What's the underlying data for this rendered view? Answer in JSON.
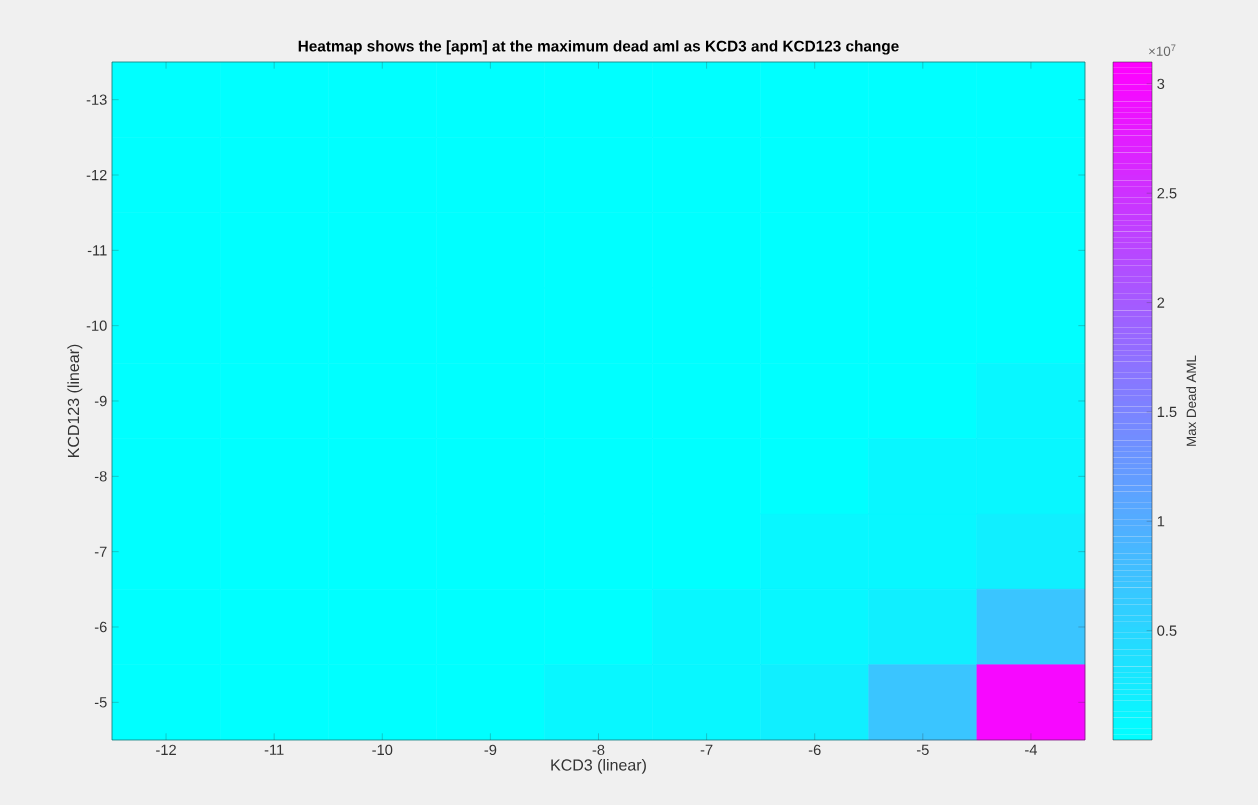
{
  "chart_data": {
    "type": "heatmap",
    "title": "Heatmap shows the [apm] at the maximum dead aml as KCD3 and KCD123 change",
    "xlabel": "KCD3 (linear)",
    "ylabel": "KCD123 (linear)",
    "clabel": "Max Dead AML",
    "annotations": [
      "×10$^{7}$"
    ],
    "categories": [
      "-12",
      "-11",
      "-10",
      "-9",
      "-8",
      "-7",
      "-6",
      "-5",
      "-4"
    ],
    "y_categories": [
      "-13",
      "-12",
      "-11",
      "-10",
      "-9",
      "-8",
      "-7",
      "-6",
      "-5"
    ],
    "clim": [
      0,
      3.1
    ],
    "cticks": [
      0.5,
      1,
      1.5,
      2,
      2.5,
      3
    ],
    "cells": [
      [
        0,
        0,
        0,
        0,
        0,
        0,
        0,
        0,
        0
      ],
      [
        0,
        0,
        0,
        0,
        0,
        0,
        0,
        0,
        0
      ],
      [
        0,
        0,
        0,
        0,
        0,
        0,
        0,
        0,
        0
      ],
      [
        0,
        0,
        0,
        0,
        0,
        0,
        0,
        0,
        0
      ],
      [
        0,
        0,
        0,
        0,
        0,
        0,
        0,
        0,
        0.1
      ],
      [
        0,
        0,
        0,
        0,
        0,
        0,
        0,
        0.1,
        0.1
      ],
      [
        0,
        0,
        0,
        0,
        0,
        0,
        0.1,
        0.1,
        0.2
      ],
      [
        0,
        0,
        0,
        0,
        0,
        0.1,
        0.1,
        0.2,
        0.7
      ],
      [
        0,
        0,
        0,
        0,
        0.1,
        0.1,
        0.2,
        0.7,
        3.0
      ]
    ]
  }
}
